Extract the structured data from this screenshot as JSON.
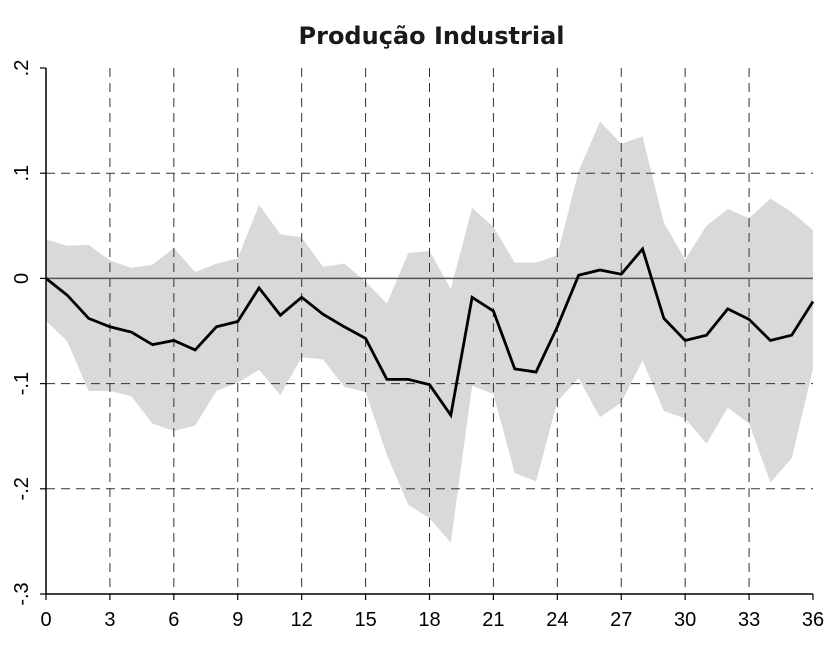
{
  "chart_data": {
    "type": "line",
    "title": "Produção Industrial",
    "xlabel": "",
    "ylabel": "",
    "xlim": [
      0,
      36
    ],
    "ylim": [
      -0.3,
      0.2
    ],
    "x_ticks": [
      0,
      3,
      6,
      9,
      12,
      15,
      18,
      21,
      24,
      27,
      30,
      33,
      36
    ],
    "x_tick_labels": [
      "0",
      "3",
      "6",
      "9",
      "12",
      "15",
      "18",
      "21",
      "24",
      "27",
      "30",
      "33",
      "36"
    ],
    "y_ticks": [
      -0.3,
      -0.2,
      -0.1,
      0,
      0.1,
      0.2
    ],
    "y_tick_labels": [
      "-.3",
      "-.2",
      "-.1",
      "0",
      ".1",
      ".2"
    ],
    "grid": "dashed",
    "zero_line": true,
    "colors": {
      "band": "#d9d9d9",
      "line": "#000000",
      "grid": "#333333"
    },
    "x": [
      0,
      1,
      2,
      3,
      4,
      5,
      6,
      7,
      8,
      9,
      10,
      11,
      12,
      13,
      14,
      15,
      16,
      17,
      18,
      19,
      20,
      21,
      22,
      23,
      24,
      25,
      26,
      27,
      28,
      29,
      30,
      31,
      32,
      33,
      34,
      35,
      36
    ],
    "series": [
      {
        "role": "point_estimate",
        "values": [
          0.0,
          -0.016,
          -0.038,
          -0.046,
          -0.051,
          -0.063,
          -0.059,
          -0.068,
          -0.046,
          -0.041,
          -0.009,
          -0.035,
          -0.018,
          -0.034,
          -0.046,
          -0.057,
          -0.096,
          -0.096,
          -0.101,
          -0.13,
          -0.018,
          -0.031,
          -0.086,
          -0.089,
          -0.046,
          0.003,
          0.008,
          0.004,
          0.028,
          -0.038,
          -0.059,
          -0.054,
          -0.029,
          -0.039,
          -0.059,
          -0.054,
          -0.022
        ]
      },
      {
        "role": "band_upper",
        "values": [
          0.037,
          0.031,
          0.032,
          0.017,
          0.01,
          0.013,
          0.029,
          0.006,
          0.014,
          0.019,
          0.07,
          0.042,
          0.039,
          0.011,
          0.014,
          -0.003,
          -0.024,
          0.024,
          0.026,
          -0.01,
          0.067,
          0.049,
          0.015,
          0.015,
          0.022,
          0.102,
          0.149,
          0.128,
          0.135,
          0.053,
          0.018,
          0.05,
          0.066,
          0.057,
          0.076,
          0.063,
          0.046
        ]
      },
      {
        "role": "band_lower",
        "values": [
          -0.04,
          -0.06,
          -0.107,
          -0.107,
          -0.112,
          -0.138,
          -0.145,
          -0.14,
          -0.107,
          -0.099,
          -0.087,
          -0.111,
          -0.075,
          -0.077,
          -0.103,
          -0.108,
          -0.168,
          -0.215,
          -0.228,
          -0.251,
          -0.102,
          -0.11,
          -0.185,
          -0.193,
          -0.117,
          -0.095,
          -0.132,
          -0.118,
          -0.078,
          -0.126,
          -0.133,
          -0.157,
          -0.123,
          -0.138,
          -0.194,
          -0.171,
          -0.086
        ]
      }
    ]
  }
}
